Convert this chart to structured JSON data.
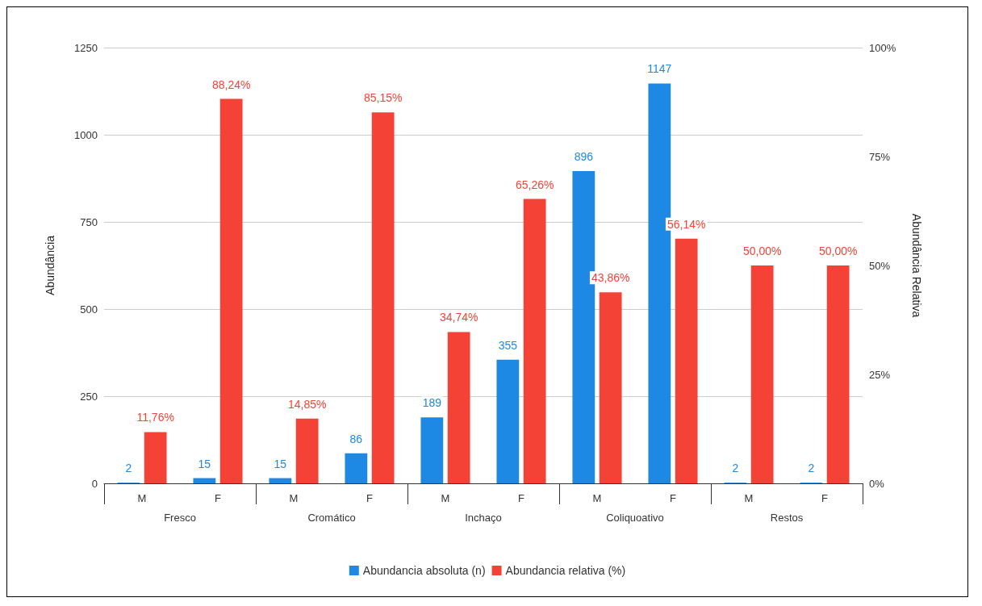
{
  "chart_data": {
    "type": "bar",
    "categories": [
      "M",
      "F",
      "M",
      "F",
      "M",
      "F",
      "M",
      "F",
      "M",
      "F"
    ],
    "annotations": [
      "Fresco",
      "Cromático",
      "Inchaço",
      "Coliquoativo",
      "Restos"
    ],
    "ylabel": "Abundância",
    "y2label": "Abundância Relativa",
    "ylim": [
      0,
      1250
    ],
    "yticks": [
      0,
      250,
      500,
      750,
      1000,
      1250
    ],
    "y2lim": [
      0,
      100
    ],
    "y2ticks": [
      {
        "value": 0,
        "label": "0%"
      },
      {
        "value": 25,
        "label": "25%"
      },
      {
        "value": 50,
        "label": "50%"
      },
      {
        "value": 75,
        "label": "75%"
      },
      {
        "value": 100,
        "label": "100%"
      }
    ],
    "series": [
      {
        "name": "Abundancia absoluta (n)",
        "color": "#1e88e5",
        "values": [
          2,
          15,
          15,
          86,
          189,
          355,
          896,
          1147,
          2,
          2
        ]
      },
      {
        "name": "Abundancia relativa (%)",
        "color": "#f44336",
        "axis": "y2",
        "values": [
          11.76,
          88.24,
          14.85,
          85.15,
          34.74,
          65.26,
          43.86,
          56.14,
          50,
          50
        ],
        "value_labels": [
          "11,76%",
          "88,24%",
          "14,85%",
          "85,15%",
          "34,74%",
          "65,26%",
          "43,86%",
          "56,14%",
          "50,00%",
          "50,00%"
        ]
      }
    ],
    "data_labels": true,
    "grid": "y",
    "legend": "bottom"
  }
}
